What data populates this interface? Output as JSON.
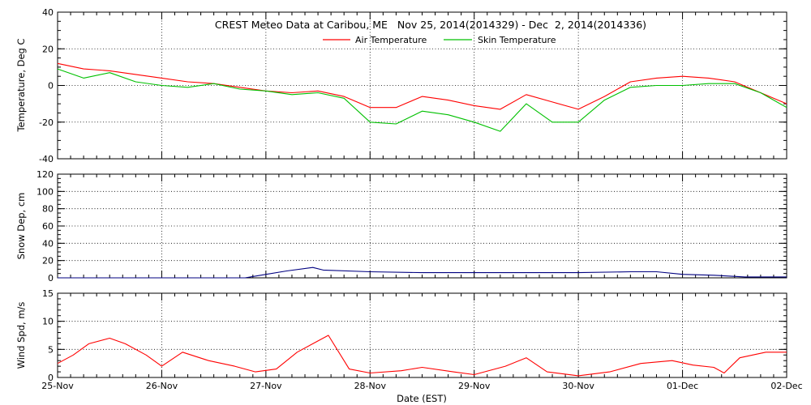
{
  "chart_data": [
    {
      "type": "line",
      "title": "CREST Meteo Data at Caribou, ME   Nov 25, 2014(2014329) - Dec  2, 2014(2014336)",
      "xlabel": "",
      "ylabel": "Temperature, Deg C",
      "ylim": [
        -40,
        40
      ],
      "yticks": [
        "40",
        "20",
        "0",
        "-20",
        "-40"
      ],
      "xlim_days": [
        0,
        7
      ],
      "grid": true,
      "legend_position": "top-center",
      "series": [
        {
          "name": "Air Temperature",
          "color": "#ff0000",
          "x": [
            0,
            0.25,
            0.5,
            0.75,
            1.0,
            1.25,
            1.5,
            1.75,
            2.0,
            2.25,
            2.5,
            2.75,
            3.0,
            3.25,
            3.5,
            3.75,
            4.0,
            4.25,
            4.5,
            4.75,
            5.0,
            5.25,
            5.5,
            5.75,
            6.0,
            6.25,
            6.5,
            6.75,
            7.0
          ],
          "y": [
            12,
            9,
            8,
            6,
            4,
            2,
            1,
            -1,
            -3,
            -4,
            -3,
            -6,
            -12,
            -12,
            -6,
            -8,
            -11,
            -13,
            -5,
            -9,
            -13,
            -6,
            2,
            4,
            5,
            4,
            2,
            -4,
            -10
          ]
        },
        {
          "name": "Skin Temperature",
          "color": "#00c000",
          "x": [
            0,
            0.25,
            0.5,
            0.75,
            1.0,
            1.25,
            1.5,
            1.75,
            2.0,
            2.25,
            2.5,
            2.75,
            3.0,
            3.25,
            3.5,
            3.75,
            4.0,
            4.25,
            4.5,
            4.75,
            5.0,
            5.25,
            5.5,
            5.75,
            6.0,
            6.25,
            6.5,
            6.75,
            7.0
          ],
          "y": [
            9,
            4,
            7,
            2,
            0,
            -1,
            1,
            -2,
            -3,
            -5,
            -4,
            -7,
            -20,
            -21,
            -14,
            -16,
            -20,
            -25,
            -10,
            -20,
            -20,
            -8,
            -1,
            0,
            0,
            1,
            1,
            -4,
            -12
          ]
        }
      ]
    },
    {
      "type": "line",
      "title": "",
      "xlabel": "",
      "ylabel": "Snow Dep, cm",
      "ylim": [
        0,
        120
      ],
      "yticks": [
        "120",
        "100",
        "80",
        "60",
        "40",
        "20",
        "0"
      ],
      "xlim_days": [
        0,
        7
      ],
      "grid": true,
      "series": [
        {
          "name": "",
          "color": "#000080",
          "x": [
            0,
            1.8,
            1.95,
            2.2,
            2.45,
            2.55,
            3.0,
            3.5,
            4.0,
            4.5,
            5.0,
            5.5,
            5.75,
            6.0,
            6.3,
            6.6,
            7.0
          ],
          "y": [
            0,
            0,
            3,
            8,
            12,
            9,
            7,
            6,
            6,
            6,
            6,
            7,
            7,
            4,
            3,
            1,
            1
          ]
        }
      ]
    },
    {
      "type": "line",
      "title": "",
      "xlabel": "Date (EST)",
      "ylabel": "Wind Spd, m/s",
      "ylim": [
        0,
        15
      ],
      "yticks": [
        "15",
        "10",
        "5",
        "0"
      ],
      "xlim_days": [
        0,
        7
      ],
      "xticks": [
        "25-Nov",
        "26-Nov",
        "27-Nov",
        "28-Nov",
        "29-Nov",
        "30-Nov",
        "01-Dec",
        "02-Dec"
      ],
      "grid": true,
      "series": [
        {
          "name": "",
          "color": "#ff0000",
          "x": [
            0,
            0.15,
            0.3,
            0.5,
            0.65,
            0.85,
            1.0,
            1.2,
            1.45,
            1.7,
            1.9,
            2.1,
            2.3,
            2.5,
            2.6,
            2.8,
            3.0,
            3.3,
            3.5,
            3.8,
            4.0,
            4.3,
            4.5,
            4.7,
            5.0,
            5.3,
            5.6,
            5.9,
            6.1,
            6.3,
            6.4,
            6.55,
            6.8,
            7.0
          ],
          "y": [
            2.5,
            4,
            6,
            7,
            6,
            4,
            2,
            4.5,
            3,
            2,
            1,
            1.5,
            4.5,
            6.5,
            7.5,
            1.5,
            0.8,
            1.2,
            1.8,
            1,
            0.5,
            2,
            3.5,
            1,
            0.3,
            1,
            2.5,
            3,
            2.2,
            1.8,
            0.8,
            3.5,
            4.5,
            4.5
          ]
        }
      ]
    }
  ]
}
